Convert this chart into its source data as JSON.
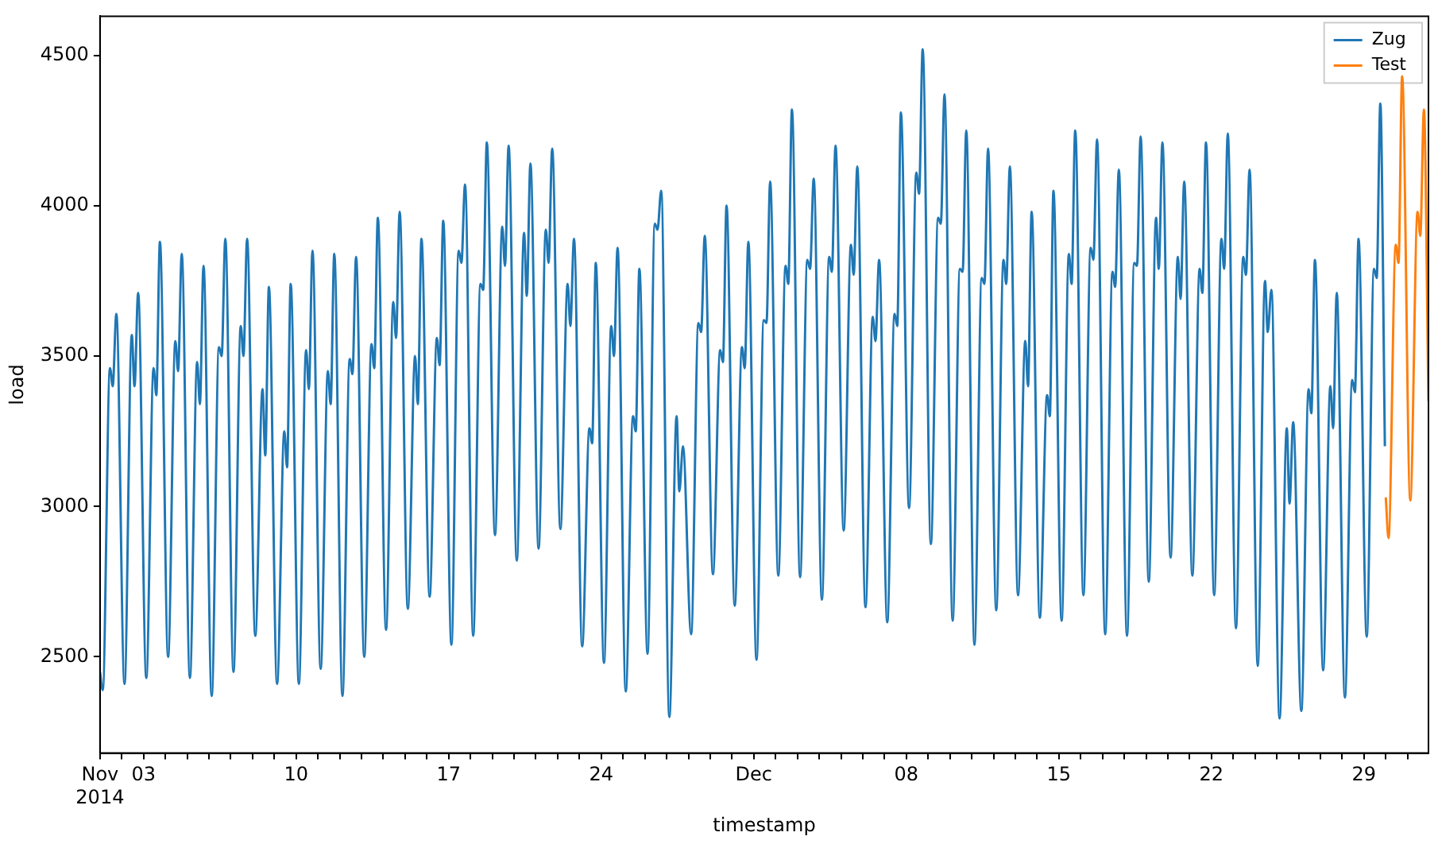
{
  "chart_data": {
    "type": "line",
    "xlabel": "timestamp",
    "ylabel": "load",
    "xlim": [
      "2014-11-01T00:00",
      "2014-12-31T23:00"
    ],
    "xticks": [
      {
        "value": "2014-11-01",
        "label": "Nov\n2014"
      },
      {
        "value": "2014-11-02",
        "label": null
      },
      {
        "value": "2014-11-03",
        "label": "03"
      },
      {
        "value": "2014-11-04",
        "label": null
      },
      {
        "value": "2014-11-05",
        "label": null
      },
      {
        "value": "2014-11-06",
        "label": null
      },
      {
        "value": "2014-11-07",
        "label": null
      },
      {
        "value": "2014-11-08",
        "label": null
      },
      {
        "value": "2014-11-09",
        "label": null
      },
      {
        "value": "2014-11-10",
        "label": "10"
      },
      {
        "value": "2014-11-11",
        "label": null
      },
      {
        "value": "2014-11-12",
        "label": null
      },
      {
        "value": "2014-11-13",
        "label": null
      },
      {
        "value": "2014-11-14",
        "label": null
      },
      {
        "value": "2014-11-15",
        "label": null
      },
      {
        "value": "2014-11-16",
        "label": null
      },
      {
        "value": "2014-11-17",
        "label": "17"
      },
      {
        "value": "2014-11-18",
        "label": null
      },
      {
        "value": "2014-11-19",
        "label": null
      },
      {
        "value": "2014-11-20",
        "label": null
      },
      {
        "value": "2014-11-21",
        "label": null
      },
      {
        "value": "2014-11-22",
        "label": null
      },
      {
        "value": "2014-11-23",
        "label": null
      },
      {
        "value": "2014-11-24",
        "label": "24"
      },
      {
        "value": "2014-11-25",
        "label": null
      },
      {
        "value": "2014-11-26",
        "label": null
      },
      {
        "value": "2014-11-27",
        "label": null
      },
      {
        "value": "2014-11-28",
        "label": null
      },
      {
        "value": "2014-11-29",
        "label": null
      },
      {
        "value": "2014-11-30",
        "label": null
      },
      {
        "value": "2014-12-01",
        "label": "Dec"
      },
      {
        "value": "2014-12-02",
        "label": null
      },
      {
        "value": "2014-12-03",
        "label": null
      },
      {
        "value": "2014-12-04",
        "label": null
      },
      {
        "value": "2014-12-05",
        "label": null
      },
      {
        "value": "2014-12-06",
        "label": null
      },
      {
        "value": "2014-12-07",
        "label": null
      },
      {
        "value": "2014-12-08",
        "label": "08"
      },
      {
        "value": "2014-12-09",
        "label": null
      },
      {
        "value": "2014-12-10",
        "label": null
      },
      {
        "value": "2014-12-11",
        "label": null
      },
      {
        "value": "2014-12-12",
        "label": null
      },
      {
        "value": "2014-12-13",
        "label": null
      },
      {
        "value": "2014-12-14",
        "label": null
      },
      {
        "value": "2014-12-15",
        "label": "15"
      },
      {
        "value": "2014-12-16",
        "label": null
      },
      {
        "value": "2014-12-17",
        "label": null
      },
      {
        "value": "2014-12-18",
        "label": null
      },
      {
        "value": "2014-12-19",
        "label": null
      },
      {
        "value": "2014-12-20",
        "label": null
      },
      {
        "value": "2014-12-21",
        "label": null
      },
      {
        "value": "2014-12-22",
        "label": "22"
      },
      {
        "value": "2014-12-23",
        "label": null
      },
      {
        "value": "2014-12-24",
        "label": null
      },
      {
        "value": "2014-12-25",
        "label": null
      },
      {
        "value": "2014-12-26",
        "label": null
      },
      {
        "value": "2014-12-27",
        "label": null
      },
      {
        "value": "2014-12-28",
        "label": null
      },
      {
        "value": "2014-12-29",
        "label": "29"
      },
      {
        "value": "2014-12-30",
        "label": null
      },
      {
        "value": "2014-12-31",
        "label": null
      }
    ],
    "ylim": [
      2180,
      4630
    ],
    "yticks": [
      2500,
      3000,
      3500,
      4000,
      4500
    ],
    "grid": false,
    "legend": "top right",
    "series": [
      {
        "name": "Zug",
        "color": "#1f77b4",
        "x": [
          "2014-11-01T00:00",
          "2014-11-01T03:00",
          "2014-11-01T11:00",
          "2014-11-01T14:00",
          "2014-11-01T18:00",
          "2014-11-02T03:00",
          "2014-11-02T11:00",
          "2014-11-02T14:00",
          "2014-11-02T18:00",
          "2014-11-03T03:00",
          "2014-11-03T11:00",
          "2014-11-03T14:00",
          "2014-11-03T18:00",
          "2014-11-04T03:00",
          "2014-11-04T11:00",
          "2014-11-04T14:00",
          "2014-11-04T18:00",
          "2014-11-05T03:00",
          "2014-11-05T11:00",
          "2014-11-05T14:00",
          "2014-11-05T18:00",
          "2014-11-06T03:00",
          "2014-11-06T11:00",
          "2014-11-06T14:00",
          "2014-11-06T18:00",
          "2014-11-07T03:00",
          "2014-11-07T11:00",
          "2014-11-07T14:00",
          "2014-11-07T18:00",
          "2014-11-08T03:00",
          "2014-11-08T11:00",
          "2014-11-08T14:00",
          "2014-11-08T18:00",
          "2014-11-09T03:00",
          "2014-11-09T11:00",
          "2014-11-09T14:00",
          "2014-11-09T18:00",
          "2014-11-10T03:00",
          "2014-11-10T11:00",
          "2014-11-10T14:00",
          "2014-11-10T18:00",
          "2014-11-11T03:00",
          "2014-11-11T11:00",
          "2014-11-11T14:00",
          "2014-11-11T18:00",
          "2014-11-12T03:00",
          "2014-11-12T11:00",
          "2014-11-12T14:00",
          "2014-11-12T18:00",
          "2014-11-13T03:00",
          "2014-11-13T11:00",
          "2014-11-13T14:00",
          "2014-11-13T18:00",
          "2014-11-14T03:00",
          "2014-11-14T11:00",
          "2014-11-14T14:00",
          "2014-11-14T18:00",
          "2014-11-15T03:00",
          "2014-11-15T11:00",
          "2014-11-15T14:00",
          "2014-11-15T18:00",
          "2014-11-16T03:00",
          "2014-11-16T11:00",
          "2014-11-16T14:00",
          "2014-11-16T18:00",
          "2014-11-17T03:00",
          "2014-11-17T11:00",
          "2014-11-17T14:00",
          "2014-11-17T18:00",
          "2014-11-18T03:00",
          "2014-11-18T11:00",
          "2014-11-18T14:00",
          "2014-11-18T18:00",
          "2014-11-19T03:00",
          "2014-11-19T11:00",
          "2014-11-19T14:00",
          "2014-11-19T18:00",
          "2014-11-20T03:00",
          "2014-11-20T11:00",
          "2014-11-20T14:00",
          "2014-11-20T18:00",
          "2014-11-21T03:00",
          "2014-11-21T11:00",
          "2014-11-21T14:00",
          "2014-11-21T18:00",
          "2014-11-22T03:00",
          "2014-11-22T11:00",
          "2014-11-22T14:00",
          "2014-11-22T18:00",
          "2014-11-23T03:00",
          "2014-11-23T11:00",
          "2014-11-23T14:00",
          "2014-11-23T18:00",
          "2014-11-24T03:00",
          "2014-11-24T11:00",
          "2014-11-24T14:00",
          "2014-11-24T18:00",
          "2014-11-25T03:00",
          "2014-11-25T11:00",
          "2014-11-25T14:00",
          "2014-11-25T18:00",
          "2014-11-26T03:00",
          "2014-11-26T11:00",
          "2014-11-26T14:00",
          "2014-11-26T18:00",
          "2014-11-27T03:00",
          "2014-11-27T11:00",
          "2014-11-27T14:00",
          "2014-11-27T18:00",
          "2014-11-28T03:00",
          "2014-11-28T11:00",
          "2014-11-28T14:00",
          "2014-11-28T18:00",
          "2014-11-29T03:00",
          "2014-11-29T11:00",
          "2014-11-29T14:00",
          "2014-11-29T18:00",
          "2014-11-30T03:00",
          "2014-11-30T11:00",
          "2014-11-30T14:00",
          "2014-11-30T18:00",
          "2014-12-01T03:00",
          "2014-12-01T11:00",
          "2014-12-01T14:00",
          "2014-12-01T18:00",
          "2014-12-02T03:00",
          "2014-12-02T11:00",
          "2014-12-02T14:00",
          "2014-12-02T18:00",
          "2014-12-03T03:00",
          "2014-12-03T11:00",
          "2014-12-03T14:00",
          "2014-12-03T18:00",
          "2014-12-04T03:00",
          "2014-12-04T11:00",
          "2014-12-04T14:00",
          "2014-12-04T18:00",
          "2014-12-05T03:00",
          "2014-12-05T11:00",
          "2014-12-05T14:00",
          "2014-12-05T18:00",
          "2014-12-06T03:00",
          "2014-12-06T11:00",
          "2014-12-06T14:00",
          "2014-12-06T18:00",
          "2014-12-07T03:00",
          "2014-12-07T11:00",
          "2014-12-07T14:00",
          "2014-12-07T18:00",
          "2014-12-08T03:00",
          "2014-12-08T11:00",
          "2014-12-08T14:00",
          "2014-12-08T18:00",
          "2014-12-09T03:00",
          "2014-12-09T11:00",
          "2014-12-09T14:00",
          "2014-12-09T18:00",
          "2014-12-10T03:00",
          "2014-12-10T11:00",
          "2014-12-10T14:00",
          "2014-12-10T18:00",
          "2014-12-11T03:00",
          "2014-12-11T11:00",
          "2014-12-11T14:00",
          "2014-12-11T18:00",
          "2014-12-12T03:00",
          "2014-12-12T11:00",
          "2014-12-12T14:00",
          "2014-12-12T18:00",
          "2014-12-13T03:00",
          "2014-12-13T11:00",
          "2014-12-13T14:00",
          "2014-12-13T18:00",
          "2014-12-14T03:00",
          "2014-12-14T11:00",
          "2014-12-14T14:00",
          "2014-12-14T18:00",
          "2014-12-15T03:00",
          "2014-12-15T11:00",
          "2014-12-15T14:00",
          "2014-12-15T18:00",
          "2014-12-16T03:00",
          "2014-12-16T11:00",
          "2014-12-16T14:00",
          "2014-12-16T18:00",
          "2014-12-17T03:00",
          "2014-12-17T11:00",
          "2014-12-17T14:00",
          "2014-12-17T18:00",
          "2014-12-18T03:00",
          "2014-12-18T11:00",
          "2014-12-18T14:00",
          "2014-12-18T18:00",
          "2014-12-19T03:00",
          "2014-12-19T11:00",
          "2014-12-19T14:00",
          "2014-12-19T18:00",
          "2014-12-20T03:00",
          "2014-12-20T11:00",
          "2014-12-20T14:00",
          "2014-12-20T18:00",
          "2014-12-21T03:00",
          "2014-12-21T11:00",
          "2014-12-21T14:00",
          "2014-12-21T18:00",
          "2014-12-22T03:00",
          "2014-12-22T11:00",
          "2014-12-22T14:00",
          "2014-12-22T18:00",
          "2014-12-23T03:00",
          "2014-12-23T11:00",
          "2014-12-23T14:00",
          "2014-12-23T18:00",
          "2014-12-24T03:00",
          "2014-12-24T11:00",
          "2014-12-24T14:00",
          "2014-12-24T18:00",
          "2014-12-25T03:00",
          "2014-12-25T11:00",
          "2014-12-25T14:00",
          "2014-12-25T18:00",
          "2014-12-26T03:00",
          "2014-12-26T11:00",
          "2014-12-26T14:00",
          "2014-12-26T18:00",
          "2014-12-27T03:00",
          "2014-12-27T11:00",
          "2014-12-27T14:00",
          "2014-12-27T18:00",
          "2014-12-28T03:00",
          "2014-12-28T11:00",
          "2014-12-28T14:00",
          "2014-12-28T18:00",
          "2014-12-29T03:00",
          "2014-12-29T11:00",
          "2014-12-29T14:00",
          "2014-12-29T18:00",
          "2014-12-29T23:00"
        ],
        "values": [
          2450,
          2390,
          3460,
          3400,
          3640,
          2410,
          3570,
          3400,
          3710,
          2430,
          3460,
          3370,
          3880,
          2500,
          3550,
          3450,
          3840,
          2430,
          3480,
          3340,
          3800,
          2370,
          3530,
          3500,
          3890,
          2450,
          3600,
          3500,
          3890,
          2570,
          3390,
          3170,
          3730,
          2410,
          3250,
          3130,
          3740,
          2410,
          3520,
          3390,
          3850,
          2460,
          3450,
          3340,
          3840,
          2370,
          3490,
          3440,
          3830,
          2500,
          3540,
          3460,
          3960,
          2590,
          3680,
          3560,
          3980,
          2660,
          3500,
          3340,
          3890,
          2700,
          3560,
          3470,
          3950,
          2540,
          3850,
          3810,
          4070,
          2570,
          3740,
          3720,
          4210,
          2905,
          3930,
          3800,
          4200,
          2820,
          3910,
          3700,
          4140,
          2860,
          3920,
          3810,
          4190,
          2925,
          3740,
          3600,
          3890,
          2535,
          3260,
          3210,
          3810,
          2480,
          3600,
          3500,
          3860,
          2385,
          3300,
          3250,
          3790,
          2510,
          3940,
          3920,
          4050,
          2300,
          3300,
          3050,
          3200,
          2575,
          3610,
          3580,
          3900,
          2775,
          3520,
          3480,
          4000,
          2670,
          3530,
          3460,
          3880,
          2490,
          3620,
          3610,
          4080,
          2770,
          3800,
          3740,
          4320,
          2765,
          3820,
          3790,
          4090,
          2690,
          3830,
          3780,
          4200,
          2920,
          3870,
          3770,
          4130,
          2665,
          3630,
          3550,
          3820,
          2615,
          3640,
          3600,
          4310,
          2995,
          4110,
          4040,
          4520,
          2875,
          3960,
          3940,
          4370,
          2620,
          3790,
          3780,
          4250,
          2540,
          3760,
          3740,
          4190,
          2655,
          3820,
          3740,
          4130,
          2705,
          3550,
          3400,
          3980,
          2630,
          3370,
          3300,
          4050,
          2620,
          3840,
          3740,
          4250,
          2705,
          3860,
          3820,
          4220,
          2575,
          3780,
          3730,
          4120,
          2570,
          3810,
          3800,
          4230,
          2750,
          3960,
          3790,
          4210,
          2830,
          3830,
          3690,
          4080,
          2770,
          3790,
          3710,
          4210,
          2705,
          3890,
          3790,
          4240,
          2595,
          3830,
          3770,
          4120,
          2470,
          3750,
          3580,
          3720,
          2295,
          3260,
          3010,
          3280,
          2320,
          3390,
          3310,
          3820,
          2455,
          3400,
          3260,
          3710,
          2365,
          3420,
          3380,
          3890,
          2567,
          3790,
          3760,
          4340,
          3200
        ]
      },
      {
        "name": "Test",
        "color": "#ff7f0e",
        "x": [
          "2014-12-30T00:00",
          "2014-12-30T03:00",
          "2014-12-30T11:00",
          "2014-12-30T14:00",
          "2014-12-30T18:00",
          "2014-12-31T03:00",
          "2014-12-31T11:00",
          "2014-12-31T14:00",
          "2014-12-31T18:00",
          "2014-12-31T23:00"
        ],
        "values": [
          3030,
          2895,
          3870,
          3810,
          4430,
          3020,
          3980,
          3900,
          4320,
          3350
        ]
      }
    ]
  }
}
